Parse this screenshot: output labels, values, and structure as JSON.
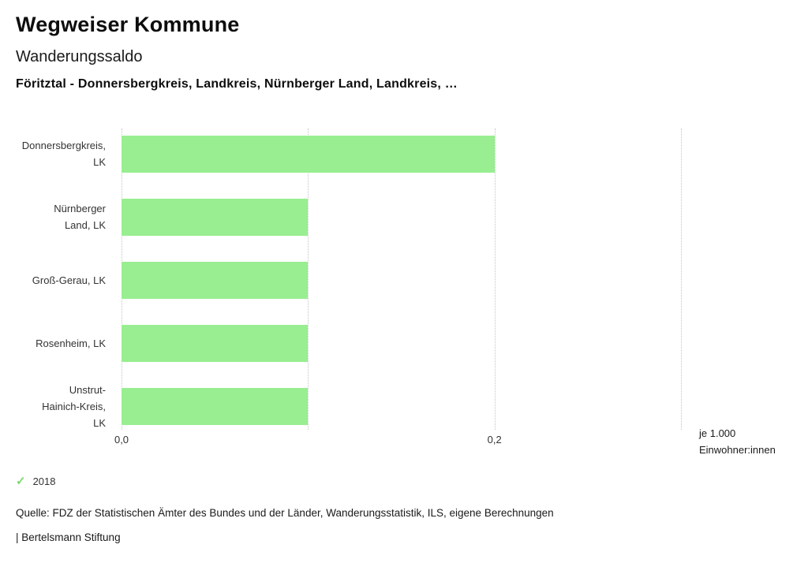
{
  "header": {
    "title": "Wegweiser Kommune",
    "subtitle": "Wanderungssaldo",
    "selection": "Föritztal - Donnersbergkreis, Landkreis, Nürnberger Land, Landkreis, …"
  },
  "chart_data": {
    "type": "bar",
    "orientation": "horizontal",
    "title": "Wanderungssaldo",
    "categories": [
      "Donnersbergkreis, LK",
      "Nürnberger Land, LK",
      "Groß-Gerau, LK",
      "Rosenheim, LK",
      "Unstrut-Hainich-Kreis, LK"
    ],
    "category_lines": [
      [
        "Donnersbergkreis,",
        "LK"
      ],
      [
        "Nürnberger",
        "Land, LK"
      ],
      [
        "Groß-Gerau, LK"
      ],
      [
        "Rosenheim, LK"
      ],
      [
        "Unstrut-",
        "Hainich-Kreis,",
        "LK"
      ]
    ],
    "series": [
      {
        "name": "2018",
        "values": [
          0.2,
          0.1,
          0.1,
          0.1,
          0.1
        ]
      }
    ],
    "xlim": [
      0,
      0.3
    ],
    "gridlines": [
      0.0,
      0.1,
      0.2,
      0.3
    ],
    "x_tick_labels": [
      {
        "value": 0.0,
        "label": "0,0"
      },
      {
        "value": 0.2,
        "label": "0,2"
      }
    ],
    "axis_unit": [
      "je 1.000",
      "Einwohner:innen"
    ],
    "xlabel": "je 1.000 Einwohner:innen",
    "ylabel": "",
    "grid": true,
    "legend_position": "bottom-left",
    "bar_color": "#98ee90",
    "gridline_color": "#c4c4c4"
  },
  "legend": {
    "check_icon": "✓",
    "check_color": "#7cd96e",
    "year": "2018"
  },
  "footer": {
    "source": "Quelle: FDZ der Statistischen Ämter des Bundes und der Länder, Wanderungsstatistik, ILS, eigene Berechnungen",
    "brand": "| Bertelsmann Stiftung"
  }
}
